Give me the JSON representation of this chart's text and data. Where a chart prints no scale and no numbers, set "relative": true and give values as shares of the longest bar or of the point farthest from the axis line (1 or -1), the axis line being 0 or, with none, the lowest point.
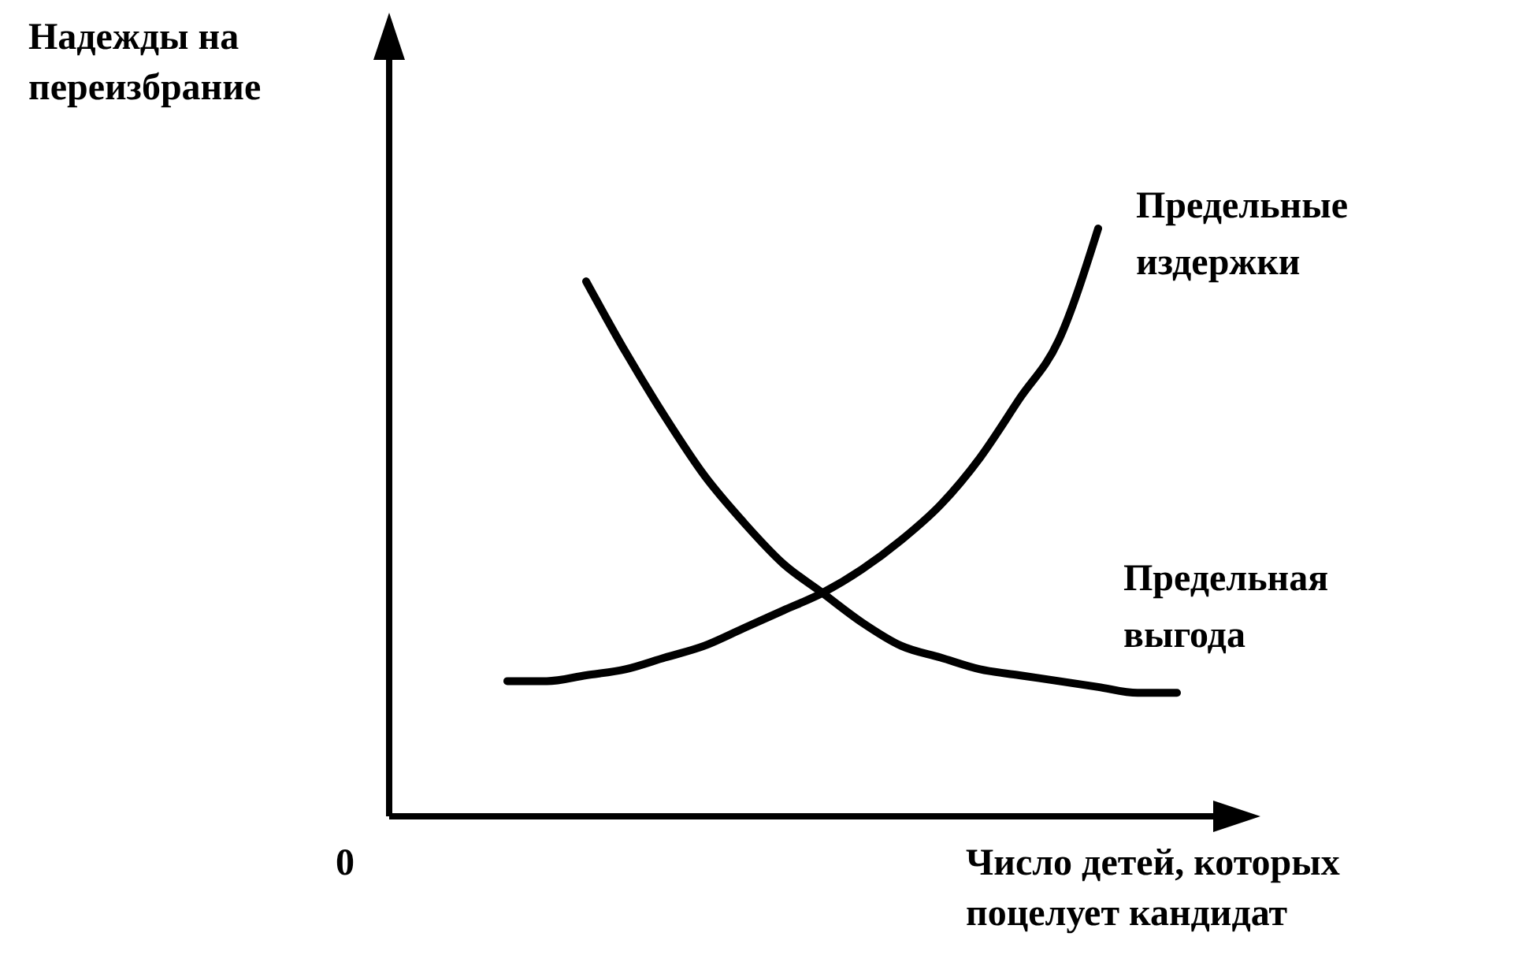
{
  "chart_data": {
    "type": "line",
    "relative": true,
    "xlabel": "Число детей, которых поцелует кандидат",
    "ylabel": "Надежды на переизбрание",
    "annotations": [
      "0"
    ],
    "categories": [
      null,
      null,
      null,
      null,
      null,
      null,
      null,
      null,
      null,
      null,
      null,
      null,
      null,
      null,
      null,
      null,
      null,
      null,
      null,
      null,
      null,
      null
    ],
    "series": [
      {
        "name": "Предельные издержки",
        "color": "#000000",
        "values": [
          null,
          null,
          null,
          0.23,
          0.23,
          0.24,
          0.25,
          0.27,
          0.29,
          0.32,
          0.35,
          0.38,
          0.42,
          0.47,
          0.53,
          0.61,
          0.71,
          0.81,
          1,
          null,
          null,
          null
        ]
      },
      {
        "name": "Предельная выгода",
        "color": "#000000",
        "values": [
          null,
          null,
          null,
          null,
          null,
          0.91,
          0.79,
          0.68,
          0.58,
          0.5,
          0.43,
          0.38,
          0.33,
          0.29,
          0.27,
          0.25,
          0.24,
          0.23,
          0.22,
          0.21,
          0.21,
          null
        ]
      }
    ],
    "grid": false,
    "legend": false,
    "marker": "none",
    "line_style": "solid"
  }
}
